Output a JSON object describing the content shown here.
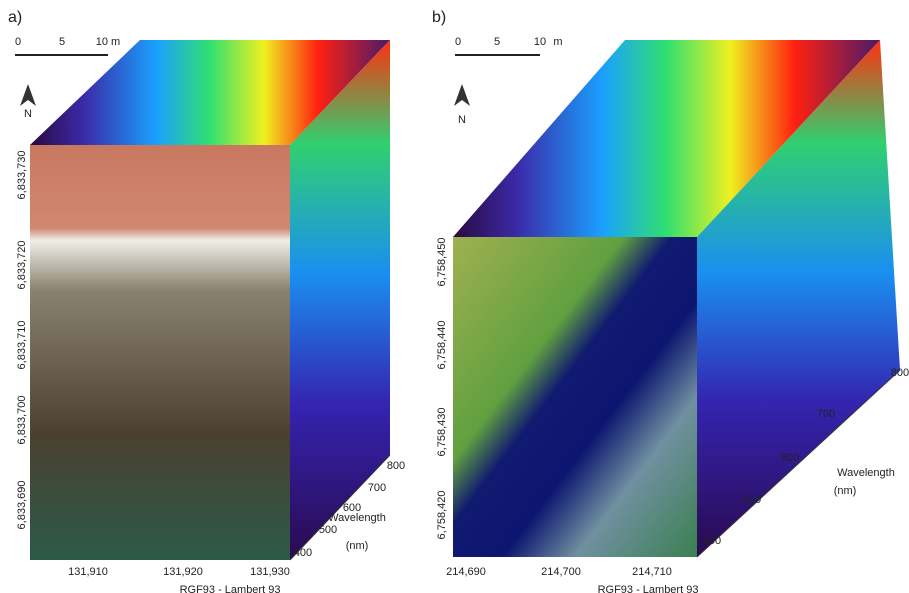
{
  "panels": [
    {
      "label": "a)",
      "scale_bar": [
        "0",
        "5",
        "10 m"
      ],
      "north": "N",
      "y_ticks": [
        "6,833,730",
        "6,833,720",
        "6,833,710",
        "6,833,700",
        "6,833,690"
      ],
      "x_ticks": [
        "131,910",
        "131,920",
        "131,930"
      ],
      "x_title": "RGF93 - Lambert 93",
      "wavelength_ticks": [
        "400",
        "500",
        "600",
        "700",
        "800"
      ],
      "wavelength_title": "Wavelength",
      "wavelength_unit": "(nm)"
    },
    {
      "label": "b)",
      "scale_bar": [
        "0",
        "5",
        "10",
        "m"
      ],
      "north": "N",
      "y_ticks": [
        "6,758,450",
        "6,758,440",
        "6,758,430",
        "6,758,420"
      ],
      "x_ticks": [
        "214,690",
        "214,700",
        "214,710"
      ],
      "x_title": "RGF93 - Lambert 93",
      "wavelength_ticks": [
        "400",
        "500",
        "600",
        "700",
        "800"
      ],
      "wavelength_title": "Wavelength",
      "wavelength_unit": "(nm)"
    }
  ]
}
